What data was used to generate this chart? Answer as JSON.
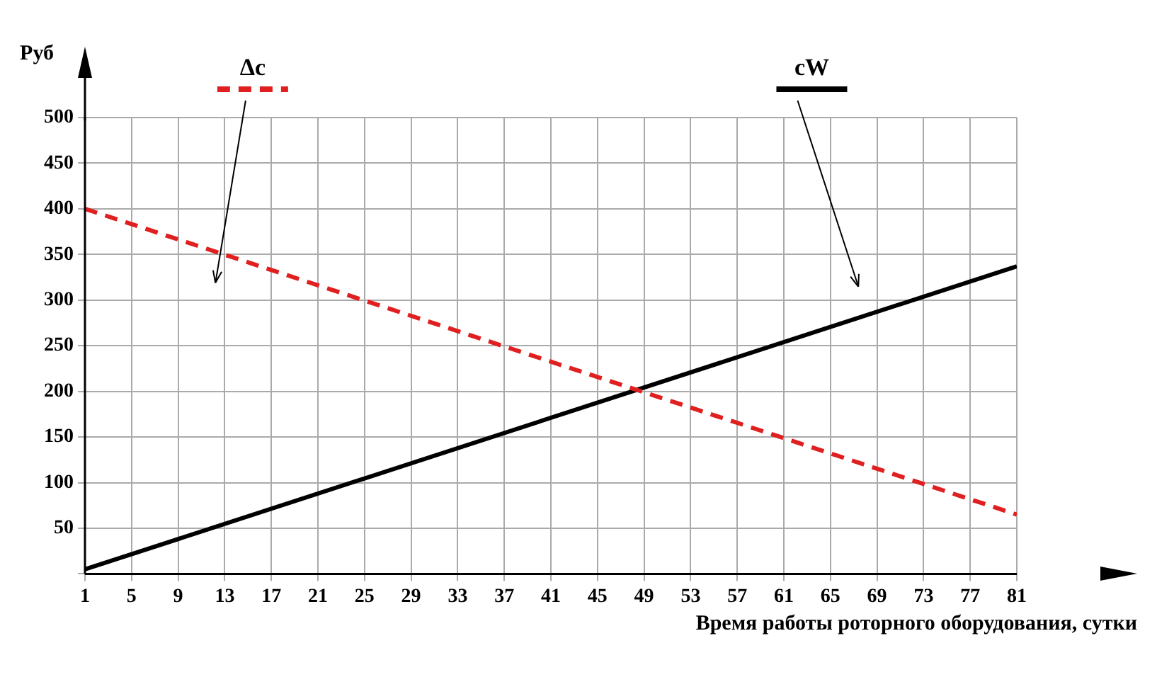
{
  "chart_data": {
    "type": "line",
    "xlabel": "Время работы роторного оборудования, сутки",
    "ylabel": "Руб",
    "x": [
      1,
      81
    ],
    "series": [
      {
        "name": "Δc",
        "color": "#e02020",
        "values": [
          400,
          65
        ],
        "line_style": "dashed"
      },
      {
        "name": "cW",
        "color": "#000000",
        "values": [
          5,
          337
        ],
        "line_style": "solid"
      }
    ],
    "xlim": [
      1,
      81
    ],
    "xticks": [
      1,
      5,
      9,
      13,
      17,
      21,
      25,
      29,
      33,
      37,
      41,
      45,
      49,
      53,
      57,
      61,
      65,
      69,
      73,
      77,
      81
    ],
    "ylim": [
      0,
      500
    ],
    "yticks": [
      {
        "value": 0,
        "label": null
      },
      50,
      100,
      150,
      200,
      250,
      300,
      350,
      400,
      450,
      500
    ],
    "grid": true,
    "legend": "top",
    "marker": "none"
  }
}
